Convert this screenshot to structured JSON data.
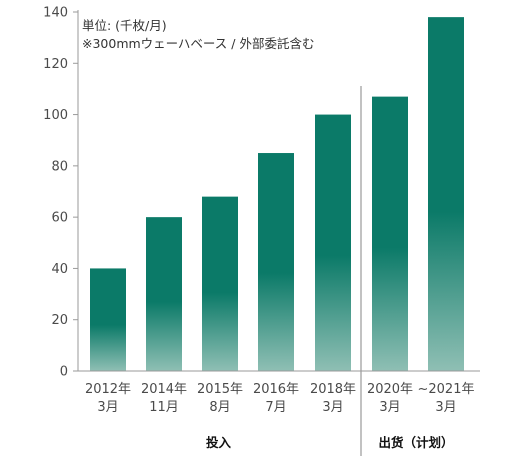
{
  "chart_data": {
    "type": "bar",
    "title": "",
    "xlabel": "",
    "ylabel": "",
    "ylim": [
      0,
      140
    ],
    "yticks": [
      0,
      20,
      40,
      60,
      80,
      100,
      120,
      140
    ],
    "grid": false,
    "legend": "none",
    "note_lines": [
      "単位: (千枚/月)",
      "※300mmウェーハベース / 外部委託含む"
    ],
    "categories": [
      [
        "2012年",
        "3月"
      ],
      [
        "2014年",
        "11月"
      ],
      [
        "2015年",
        "8月"
      ],
      [
        "2016年",
        "7月"
      ],
      [
        "2018年",
        "3月"
      ],
      [
        "2020年",
        "3月"
      ],
      [
        "~2021年",
        "3月"
      ]
    ],
    "values": [
      40,
      60,
      68,
      85,
      100,
      107,
      138
    ],
    "groups": [
      {
        "label": "投入",
        "start": 0,
        "end": 4
      },
      {
        "label": "出货（计划）",
        "start": 5,
        "end": 6
      }
    ],
    "colors": {
      "bar_top": "#0b7a68",
      "bar_bottom": "#8fbfb4",
      "axis": "#9a9a9a",
      "divider": "#9a9a9a"
    }
  }
}
